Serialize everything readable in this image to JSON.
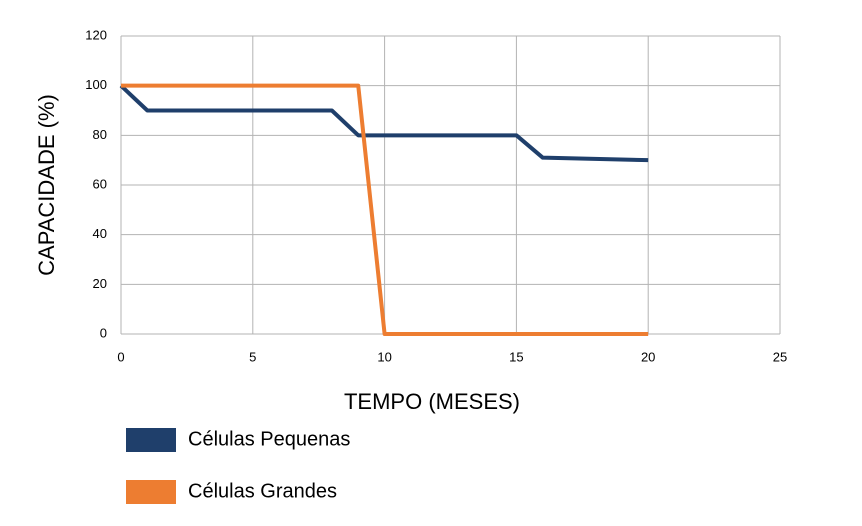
{
  "chart_data": {
    "type": "line",
    "x_label": "TEMPO (MESES)",
    "y_label": "CAPACIDADE (%)",
    "xlim": [
      0,
      25
    ],
    "xticks": [
      0,
      5,
      10,
      15,
      20,
      25
    ],
    "ylim": [
      0,
      120
    ],
    "yticks": [
      0,
      20,
      40,
      60,
      80,
      100,
      120
    ],
    "grid": true,
    "legend": "bottom-left",
    "series": [
      {
        "name": "Células Pequenas",
        "color": "#1f3f6b",
        "x": [
          0,
          1,
          8,
          9,
          15,
          16,
          20
        ],
        "values": [
          100,
          90,
          90,
          80,
          80,
          71,
          70
        ]
      },
      {
        "name": "Células Grandes",
        "color": "#ed7d31",
        "x": [
          0,
          9,
          10,
          20
        ],
        "values": [
          100,
          100,
          0,
          0
        ]
      }
    ]
  }
}
